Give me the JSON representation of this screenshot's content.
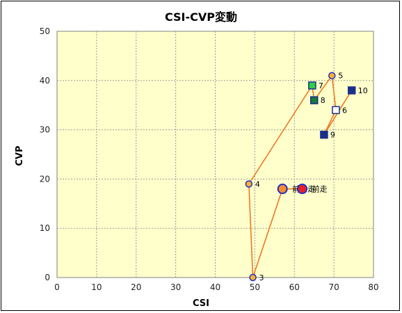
{
  "chart_data": {
    "type": "scatter",
    "title": "CSI-CVP変動",
    "xlabel": "CSI",
    "ylabel": "CVP",
    "xlim": [
      0,
      80
    ],
    "ylim": [
      0,
      50
    ],
    "xticks": [
      0,
      10,
      20,
      30,
      40,
      50,
      60,
      70,
      80
    ],
    "yticks": [
      0,
      10,
      20,
      30,
      40,
      50
    ],
    "grid": true,
    "plot_background": "#ffffcc",
    "line_color": "#f07820",
    "path_order": [
      "前走",
      "前々走",
      "3",
      "4",
      "7",
      "8",
      "5",
      "6",
      "9",
      "10"
    ],
    "points": [
      {
        "label": "前走",
        "x": 62,
        "y": 18,
        "shape": "circle",
        "fill": "#e8202a",
        "stroke": "#2030c8",
        "size": "large"
      },
      {
        "label": "前々走",
        "x": 57,
        "y": 18,
        "shape": "circle",
        "fill": "#f48c30",
        "stroke": "#2030c8",
        "size": "large"
      },
      {
        "label": "3",
        "x": 49.5,
        "y": 0,
        "shape": "circle",
        "fill": "#f5b030",
        "stroke": "#2030c8",
        "size": "small"
      },
      {
        "label": "4",
        "x": 48.5,
        "y": 19,
        "shape": "circle",
        "fill": "#f5b030",
        "stroke": "#2030c8",
        "size": "small"
      },
      {
        "label": "5",
        "x": 69.5,
        "y": 41,
        "shape": "circle",
        "fill": "#f5b030",
        "stroke": "#2030c8",
        "size": "small"
      },
      {
        "label": "6",
        "x": 70.5,
        "y": 34,
        "shape": "square",
        "fill": "#ffffff",
        "stroke": "#1a2f8a",
        "size": "small"
      },
      {
        "label": "7",
        "x": 64.5,
        "y": 39,
        "shape": "square",
        "fill": "#30d040",
        "stroke": "#1a2f8a",
        "size": "small"
      },
      {
        "label": "8",
        "x": 65,
        "y": 36,
        "shape": "square",
        "fill": "#1a7a3a",
        "stroke": "#1a2f8a",
        "size": "small"
      },
      {
        "label": "9",
        "x": 67.5,
        "y": 29,
        "shape": "square",
        "fill": "#1a2f8a",
        "stroke": "#1a2f8a",
        "size": "small"
      },
      {
        "label": "10",
        "x": 74.5,
        "y": 38,
        "shape": "square",
        "fill": "#1a2f8a",
        "stroke": "#1a2f8a",
        "size": "small"
      }
    ]
  }
}
